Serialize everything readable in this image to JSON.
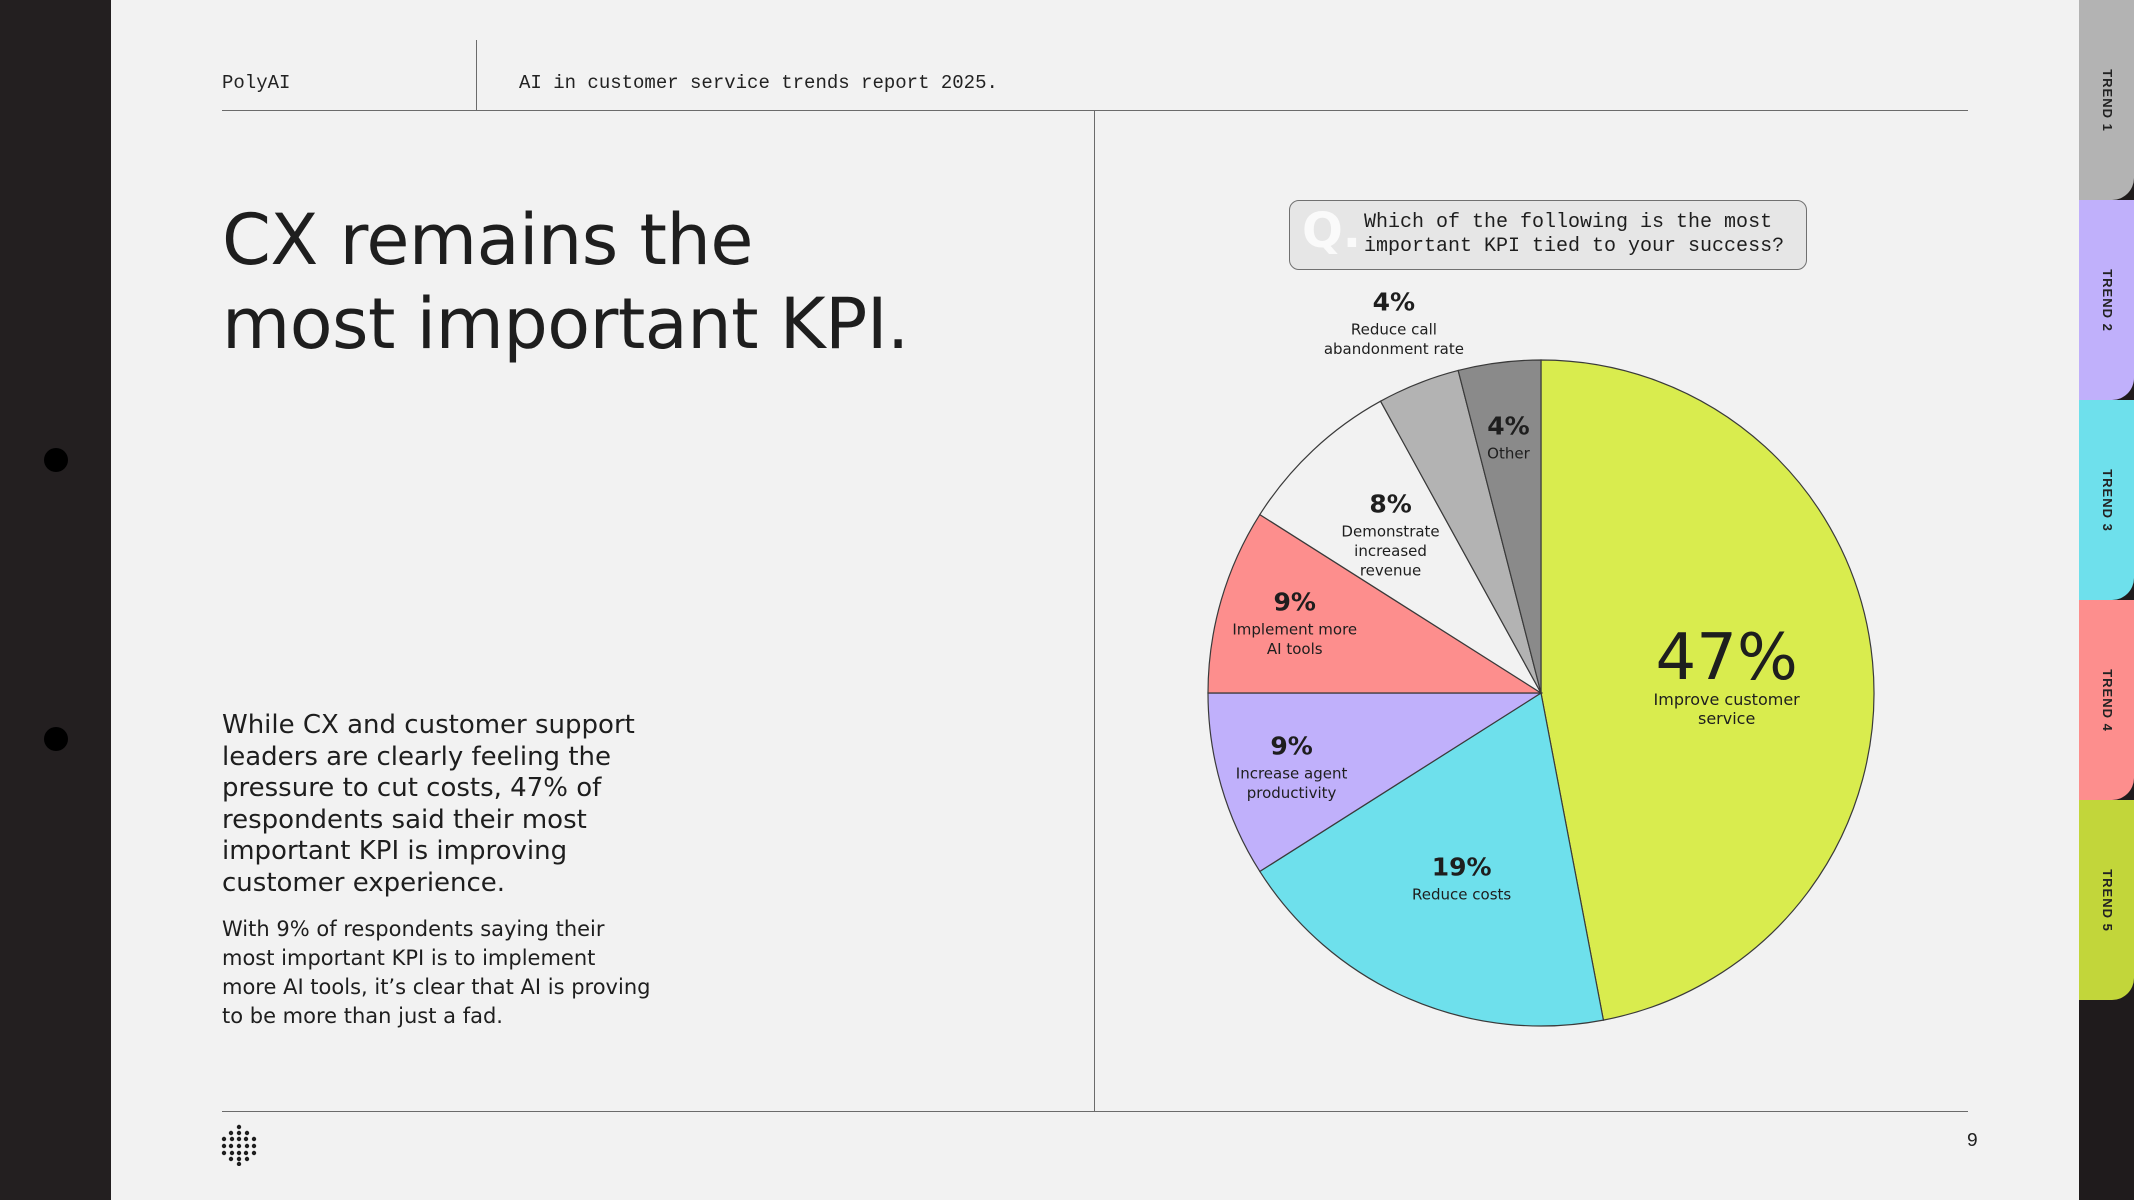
{
  "header": {
    "brand": "PolyAI",
    "report_title": "AI in customer service trends report 2025."
  },
  "headline": {
    "line1": "CX remains the",
    "line2": "most important KPI."
  },
  "body": {
    "lead": "While CX and customer support leaders are clearly feeling the pressure to cut costs, 47% of respondents said their most important KPI is improving customer experience.",
    "secondary": "With 9% of respondents saying their most important KPI is to implement more AI tools, it’s clear that AI is proving to be more than just a fad."
  },
  "question": {
    "letter": "Q.",
    "text": "Which of the following is the most\nimportant KPI tied to your success?"
  },
  "page_number": "9",
  "tabs": [
    {
      "label": "TREND 1",
      "color": "#b3b3b3"
    },
    {
      "label": "TREND 2",
      "color": "#c0b0fb"
    },
    {
      "label": "TREND 3",
      "color": "#6ee0ec"
    },
    {
      "label": "TREND 4",
      "color": "#fd8e8d"
    },
    {
      "label": "TREND 5",
      "color": "#c2d63a"
    }
  ],
  "chart_data": {
    "type": "pie",
    "title": "",
    "start": "12 o'clock, clockwise",
    "slices": [
      {
        "label": "Improve customer service",
        "value": 47,
        "display": "47%",
        "color": "#d9ec4e"
      },
      {
        "label": "Reduce costs",
        "value": 19,
        "display": "19%",
        "color": "#6ee0ec"
      },
      {
        "label": "Increase agent productivity",
        "value": 9,
        "display": "9%",
        "color": "#c0b0fb"
      },
      {
        "label": "Implement more AI tools",
        "value": 9,
        "display": "9%",
        "color": "#fd8e8d"
      },
      {
        "label": "Demonstrate increased revenue",
        "value": 8,
        "display": "8%",
        "color": "#f2f2f2"
      },
      {
        "label": "Reduce call abandonment rate",
        "value": 4,
        "display": "4%",
        "color": "#b3b3b3"
      },
      {
        "label": "Other",
        "value": 4,
        "display": "4%",
        "color": "#8a8a8a"
      }
    ]
  }
}
